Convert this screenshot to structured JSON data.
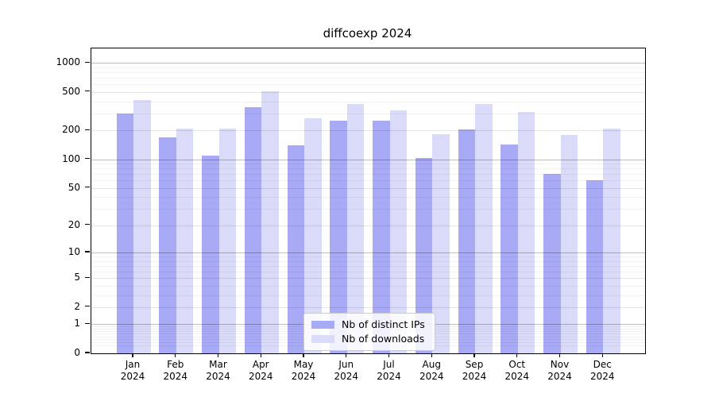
{
  "chart_data": {
    "type": "bar",
    "title": "diffcoexp 2024",
    "categories": [
      "Jan",
      "Feb",
      "Mar",
      "Apr",
      "May",
      "Jun",
      "Jul",
      "Aug",
      "Sep",
      "Oct",
      "Nov",
      "Dec"
    ],
    "x_tick_second_line": "2024",
    "series": [
      {
        "name": "Nb of distinct IPs",
        "color": "#a9aaf6",
        "values": [
          297,
          168,
          109,
          348,
          140,
          254,
          254,
          103,
          204,
          143,
          70,
          61
        ]
      },
      {
        "name": "Nb of downloads",
        "color": "#d9dbf9",
        "values": [
          414,
          210,
          207,
          508,
          266,
          376,
          325,
          184,
          378,
          313,
          179,
          207
        ]
      }
    ],
    "y_ticks": [
      0,
      1,
      2,
      5,
      10,
      20,
      50,
      100,
      200,
      500,
      1000
    ],
    "y_scale": "log1p",
    "ylim": [
      0,
      1440
    ],
    "grid": true,
    "legend_position": "lower center"
  },
  "colors": {
    "axis": "#000000",
    "grid_decade": "rgba(0,0,0,0.26)",
    "grid_mid": "rgba(0,0,0,0.10)",
    "grid_minor": "rgba(0,0,0,0.055)",
    "legend_border": "#cccccc",
    "legend_bg": "rgba(255,255,255,0.85)",
    "text": "#000000"
  }
}
